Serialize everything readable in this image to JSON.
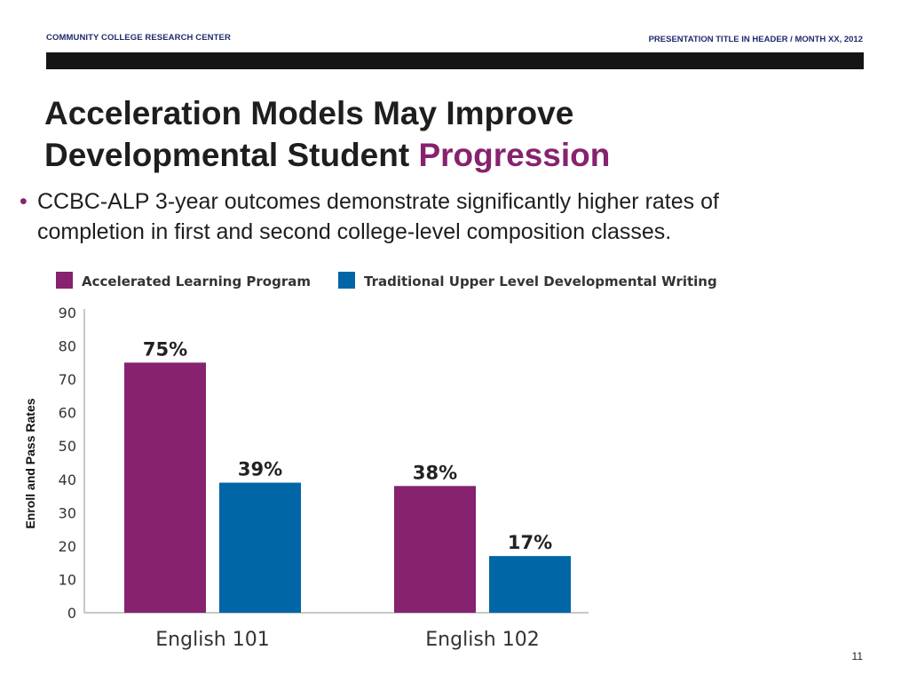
{
  "header": {
    "org": "COMMUNITY COLLEGE RESEARCH CENTER",
    "presentation": "PRESENTATION TITLE IN HEADER / MONTH XX, 2012"
  },
  "slide": {
    "title_line1": "Acceleration Models May Improve",
    "title_line2_plain": "Developmental Student ",
    "title_line2_accent": "Progression",
    "bullet_line1": "CCBC-ALP 3-year outcomes demonstrate significantly higher rates of",
    "bullet_line2": "completion in first and second college-level composition classes.",
    "page_number": "11"
  },
  "colors": {
    "accent": "#86226e",
    "series1": "#86226e",
    "series2": "#0066a6",
    "axis": "#c8c8c8"
  },
  "chart_data": {
    "type": "bar",
    "categories": [
      "English 101",
      "English 102"
    ],
    "series": [
      {
        "name": "Accelerated Learning Program",
        "values": [
          75,
          38
        ],
        "labels": [
          "75%",
          "38%"
        ]
      },
      {
        "name": "Traditional Upper Level Developmental Writing",
        "values": [
          39,
          17
        ],
        "labels": [
          "39%",
          "17%"
        ]
      }
    ],
    "ylabel": "Enroll and Pass Rates",
    "xlabel": "",
    "ylim": [
      0,
      90
    ],
    "yticks": [
      0,
      10,
      20,
      30,
      40,
      50,
      60,
      70,
      80,
      90
    ],
    "legend_position": "top",
    "grid": false
  }
}
